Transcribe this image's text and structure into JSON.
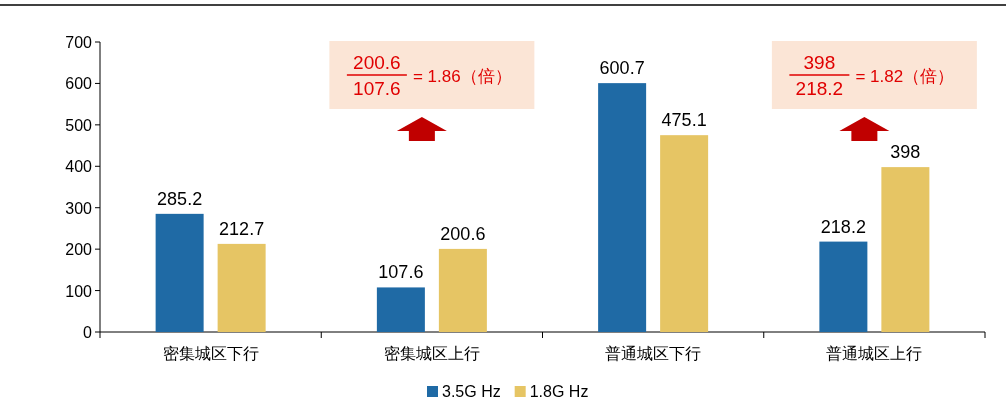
{
  "chart_data": {
    "type": "bar",
    "categories": [
      "密集城区下行",
      "密集城区上行",
      "普通城区下行",
      "普通城区上行"
    ],
    "series": [
      {
        "name": "3.5G Hz",
        "color": "#1f6aa5",
        "values": [
          285.2,
          107.6,
          600.7,
          218.2
        ]
      },
      {
        "name": "1.8G Hz",
        "color": "#e6c564",
        "values": [
          212.7,
          200.6,
          475.1,
          398
        ]
      }
    ],
    "ylim": [
      0,
      700
    ],
    "yticks": [
      0,
      100,
      200,
      300,
      400,
      500,
      600,
      700
    ],
    "data_labels": true,
    "legend": "bottom",
    "grid": false,
    "annotations": [
      "200.6",
      "107.6",
      "= 1.86（倍）",
      "398",
      "218.2",
      "= 1.82（倍）"
    ]
  }
}
